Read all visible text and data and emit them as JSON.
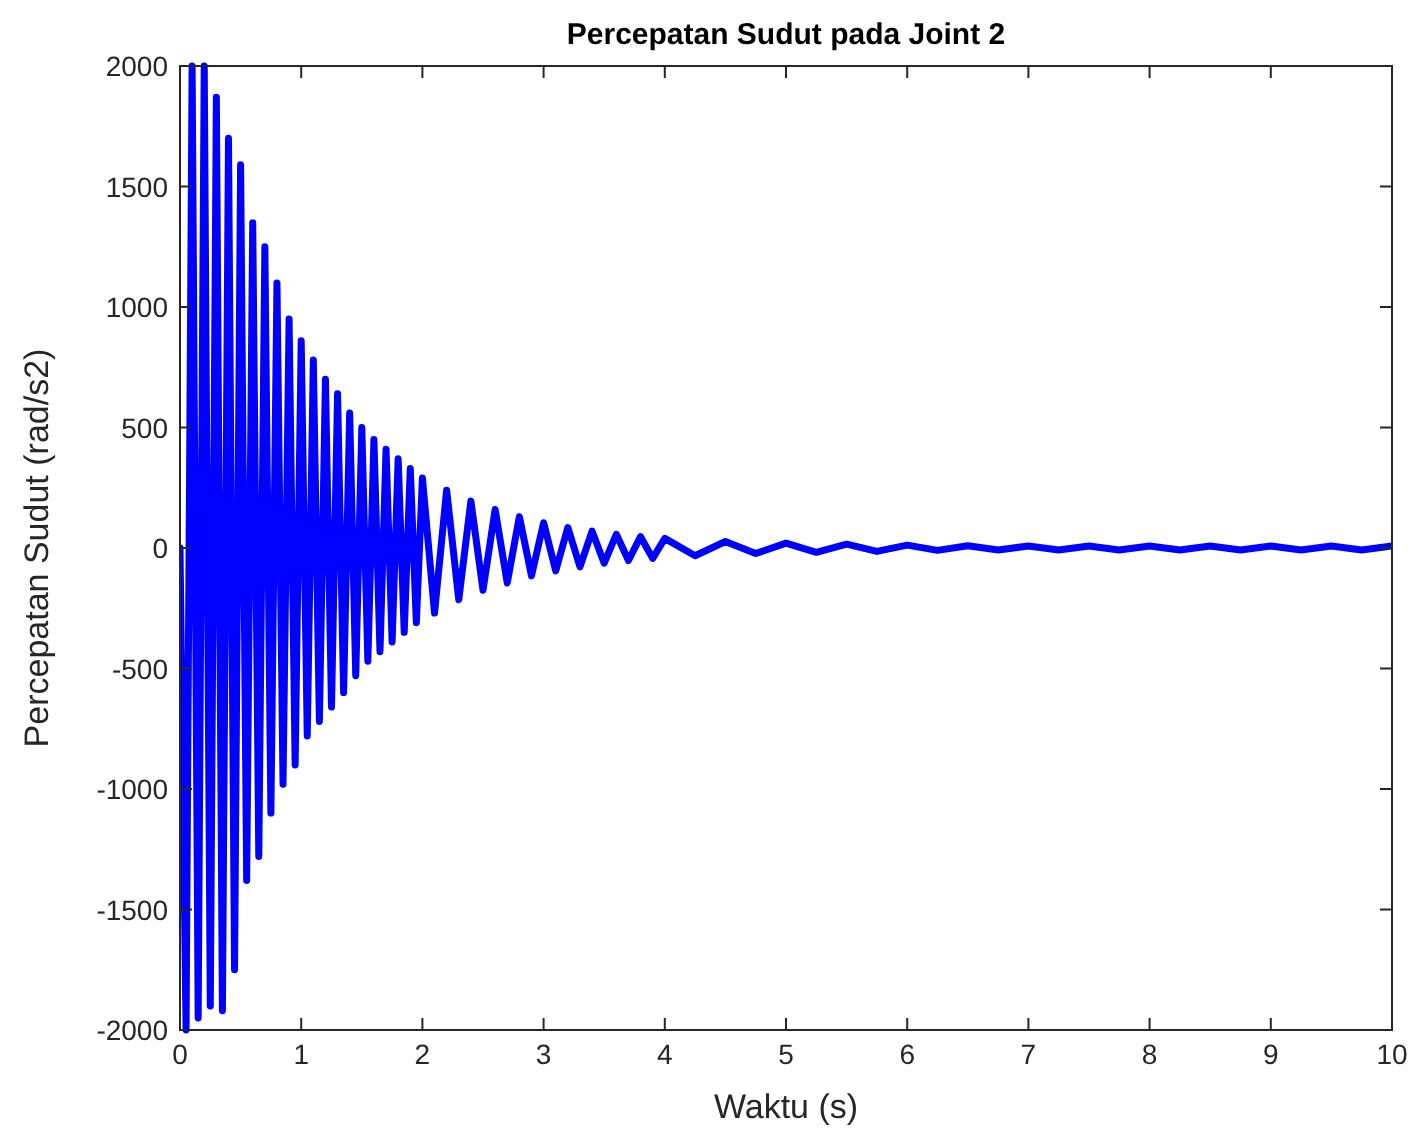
{
  "chart_data": {
    "type": "line",
    "title": "Percepatan Sudut pada Joint 2",
    "xlabel": "Waktu (s)",
    "ylabel": "Percepatan Sudut (rad/s2)",
    "xlim": [
      0,
      10
    ],
    "xticks": [
      0,
      1,
      2,
      3,
      4,
      5,
      6,
      7,
      8,
      9,
      10
    ],
    "ylim": [
      -2000,
      2000
    ],
    "yticks": [
      -2000,
      -1500,
      -1000,
      -500,
      0,
      500,
      1000,
      1500,
      2000
    ],
    "grid": false,
    "line_style": "solid",
    "series": [
      {
        "color": "#0000ff",
        "x": [
          0,
          0.05,
          0.1,
          0.15,
          0.2,
          0.25,
          0.3,
          0.35,
          0.4,
          0.45,
          0.5,
          0.55,
          0.6,
          0.65,
          0.7,
          0.75,
          0.8,
          0.85,
          0.9,
          0.95,
          1.0,
          1.05,
          1.1,
          1.15,
          1.2,
          1.25,
          1.3,
          1.35,
          1.4,
          1.45,
          1.5,
          1.55,
          1.6,
          1.65,
          1.7,
          1.75,
          1.8,
          1.85,
          1.9,
          1.95,
          2.0,
          2.1,
          2.2,
          2.3,
          2.4,
          2.5,
          2.6,
          2.7,
          2.8,
          2.9,
          3.0,
          3.1,
          3.2,
          3.3,
          3.4,
          3.5,
          3.6,
          3.7,
          3.8,
          3.9,
          4.0,
          4.25,
          4.5,
          4.75,
          5,
          5.25,
          5.5,
          5.75,
          6,
          6.25,
          6.5,
          6.75,
          7,
          7.25,
          7.5,
          7.75,
          8,
          8.25,
          8.5,
          8.75,
          9,
          9.25,
          9.5,
          9.75,
          10
        ],
        "values": [
          0,
          -2000,
          2000,
          -1950,
          2000,
          -1900,
          1870,
          -1920,
          1700,
          -1750,
          1590,
          -1380,
          1350,
          -1280,
          1250,
          -1100,
          1100,
          -980,
          950,
          -900,
          860,
          -780,
          780,
          -720,
          700,
          -660,
          640,
          -600,
          560,
          -530,
          500,
          -470,
          450,
          -430,
          410,
          -390,
          370,
          -350,
          330,
          -310,
          290,
          -270,
          240,
          -215,
          195,
          -175,
          160,
          -145,
          130,
          -115,
          105,
          -95,
          85,
          -78,
          70,
          -63,
          57,
          -52,
          47,
          -43,
          40,
          -32,
          27,
          -23,
          20,
          -18,
          16,
          -14,
          12,
          -10,
          9,
          -8,
          8,
          -8,
          8,
          -8,
          8,
          -8,
          8,
          -8,
          8,
          -8,
          8,
          -8,
          8
        ]
      }
    ]
  }
}
